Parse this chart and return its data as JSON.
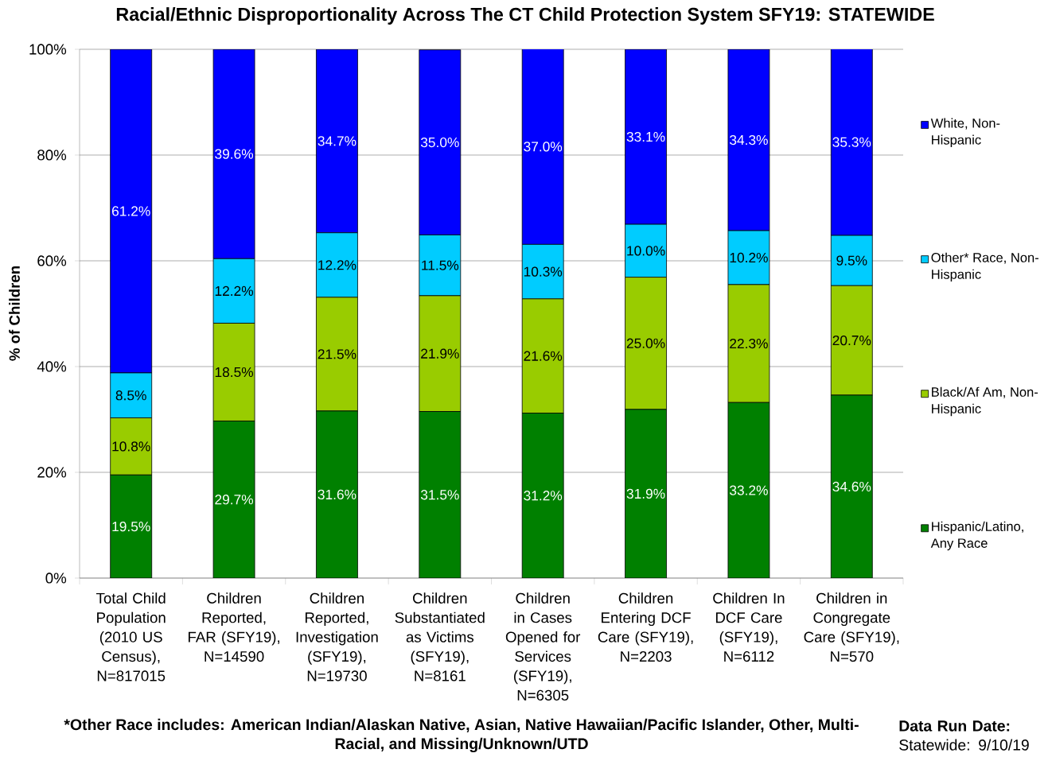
{
  "chart_data": {
    "type": "bar",
    "stacked": true,
    "title": "Racial/Ethnic Disproportionality Across The CT Child Protection System SFY19: STATEWIDE",
    "ylabel": "% of Children",
    "categories": [
      "Total Child Population (2010 US Census), N=817015",
      "Children Reported, FAR (SFY19), N=14590",
      "Children Reported, Investigation (SFY19), N=19730",
      "Children Substantiated as Victims (SFY19), N=8161",
      "Children in Cases Opened for Services (SFY19), N=6305",
      "Children Entering DCF Care (SFY19), N=2203",
      "Children In DCF Care (SFY19), N=6112",
      "Children in Congregate Care (SFY19), N=570"
    ],
    "series": [
      {
        "name": "Hispanic/Latino, Any Race",
        "color": "#008000",
        "values": [
          19.5,
          29.7,
          31.6,
          31.5,
          31.2,
          31.9,
          33.2,
          34.6
        ],
        "value_labels": [
          "19.5%",
          "29.7%",
          "31.6%",
          "31.5%",
          "31.2%",
          "31.9%",
          "33.2%",
          "34.6%"
        ]
      },
      {
        "name": "Black/Af Am, Non-Hispanic",
        "color": "#99cc00",
        "values": [
          10.8,
          18.5,
          21.5,
          21.9,
          21.6,
          25.0,
          22.3,
          20.7
        ],
        "value_labels": [
          "10.8%",
          "18.5%",
          "21.5%",
          "21.9%",
          "21.6%",
          "25.0%",
          "22.3%",
          "20.7%"
        ]
      },
      {
        "name": "Other* Race, Non-Hispanic",
        "color": "#00ccff",
        "values": [
          8.5,
          12.2,
          12.2,
          11.5,
          10.3,
          10.0,
          10.2,
          9.5
        ],
        "value_labels": [
          "8.5%",
          "12.2%",
          "12.2%",
          "11.5%",
          "10.3%",
          "10.0%",
          "10.2%",
          "9.5%"
        ]
      },
      {
        "name": "White, Non-Hispanic",
        "color": "#0000ff",
        "values": [
          61.2,
          39.6,
          34.7,
          35.0,
          37.0,
          33.1,
          34.3,
          35.3
        ],
        "value_labels": [
          "61.2%",
          "39.6%",
          "34.7%",
          "35.0%",
          "37.0%",
          "33.1%",
          "34.3%",
          "35.3%"
        ]
      }
    ],
    "ylim": [
      0,
      100
    ],
    "yticks": [
      {
        "value": 0,
        "label": "0%"
      },
      {
        "value": 20,
        "label": "20%"
      },
      {
        "value": 40,
        "label": "40%"
      },
      {
        "value": 60,
        "label": "60%"
      },
      {
        "value": 80,
        "label": "80%"
      },
      {
        "value": 100,
        "label": "100%"
      }
    ],
    "grid": "y",
    "legend": "right",
    "annotations": [
      "*Other Race includes: American Indian/Alaskan Native, Asian, Native Hawaiian/Pacific Islander, Other, Multi-Racial, and Missing/Unknown/UTD",
      "**Data Run Date:** Statewide: 9/10/19"
    ]
  }
}
